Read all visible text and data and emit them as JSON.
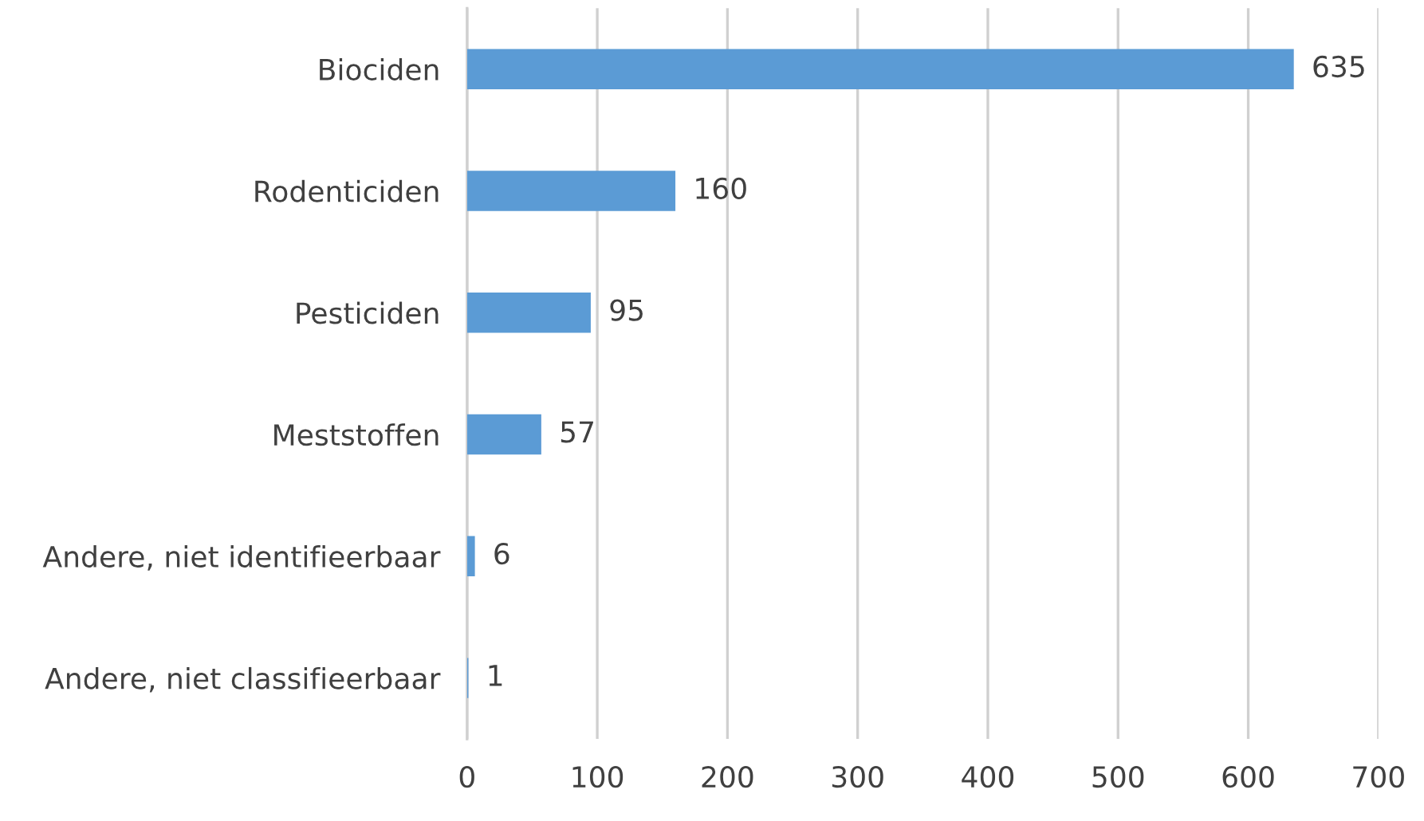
{
  "chart_data": {
    "type": "bar",
    "orientation": "horizontal",
    "categories": [
      "Biociden",
      "Rodenticiden",
      "Pesticiden",
      "Meststoffen",
      "Andere, niet identifieerbaar",
      "Andere, niet classifieerbaar"
    ],
    "values": [
      635,
      160,
      95,
      57,
      6,
      1
    ],
    "color": "#5b9bd5",
    "xlim": [
      0,
      700
    ],
    "xticks": [
      0,
      100,
      200,
      300,
      400,
      500,
      600,
      700
    ],
    "grid": "x",
    "data_labels": true
  }
}
